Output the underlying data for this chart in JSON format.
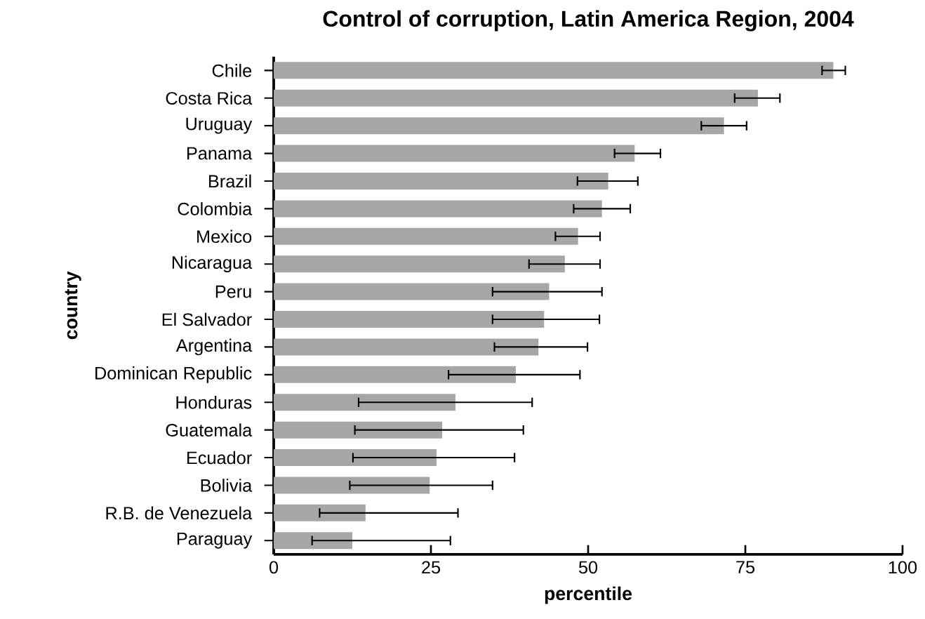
{
  "chart_data": {
    "type": "bar",
    "orientation": "horizontal",
    "title": "Control of corruption, Latin America Region, 2004",
    "xlabel": "percentile",
    "ylabel": "country",
    "categories": [
      "Chile",
      "Costa Rica",
      "Uruguay",
      "Panama",
      "Brazil",
      "Colombia",
      "Mexico",
      "Nicaragua",
      "Peru",
      "El Salvador",
      "Argentina",
      "Dominican Republic",
      "Honduras",
      "Guatemala",
      "Ecuador",
      "Bolivia",
      "R.B. de Venezuela",
      "Paraguay"
    ],
    "values": [
      89.0,
      77.0,
      71.6,
      57.4,
      53.2,
      52.2,
      48.4,
      46.3,
      43.8,
      43.0,
      42.1,
      38.5,
      28.9,
      26.8,
      25.9,
      24.8,
      14.6,
      12.5
    ],
    "errors": [
      [
        87.2,
        90.9
      ],
      [
        73.3,
        80.5
      ],
      [
        68.0,
        75.2
      ],
      [
        54.2,
        61.5
      ],
      [
        48.3,
        57.9
      ],
      [
        47.7,
        56.7
      ],
      [
        44.8,
        51.9
      ],
      [
        40.6,
        51.9
      ],
      [
        34.8,
        52.2
      ],
      [
        34.8,
        51.8
      ],
      [
        35.1,
        49.9
      ],
      [
        27.8,
        48.7
      ],
      [
        13.5,
        41.1
      ],
      [
        12.9,
        39.7
      ],
      [
        12.6,
        38.3
      ],
      [
        12.1,
        34.8
      ],
      [
        7.3,
        29.3
      ],
      [
        6.1,
        28.1
      ]
    ],
    "color": "#a6a6a6",
    "xlim": [
      0,
      100
    ],
    "xticks": [
      0,
      25,
      50,
      75,
      100
    ]
  }
}
